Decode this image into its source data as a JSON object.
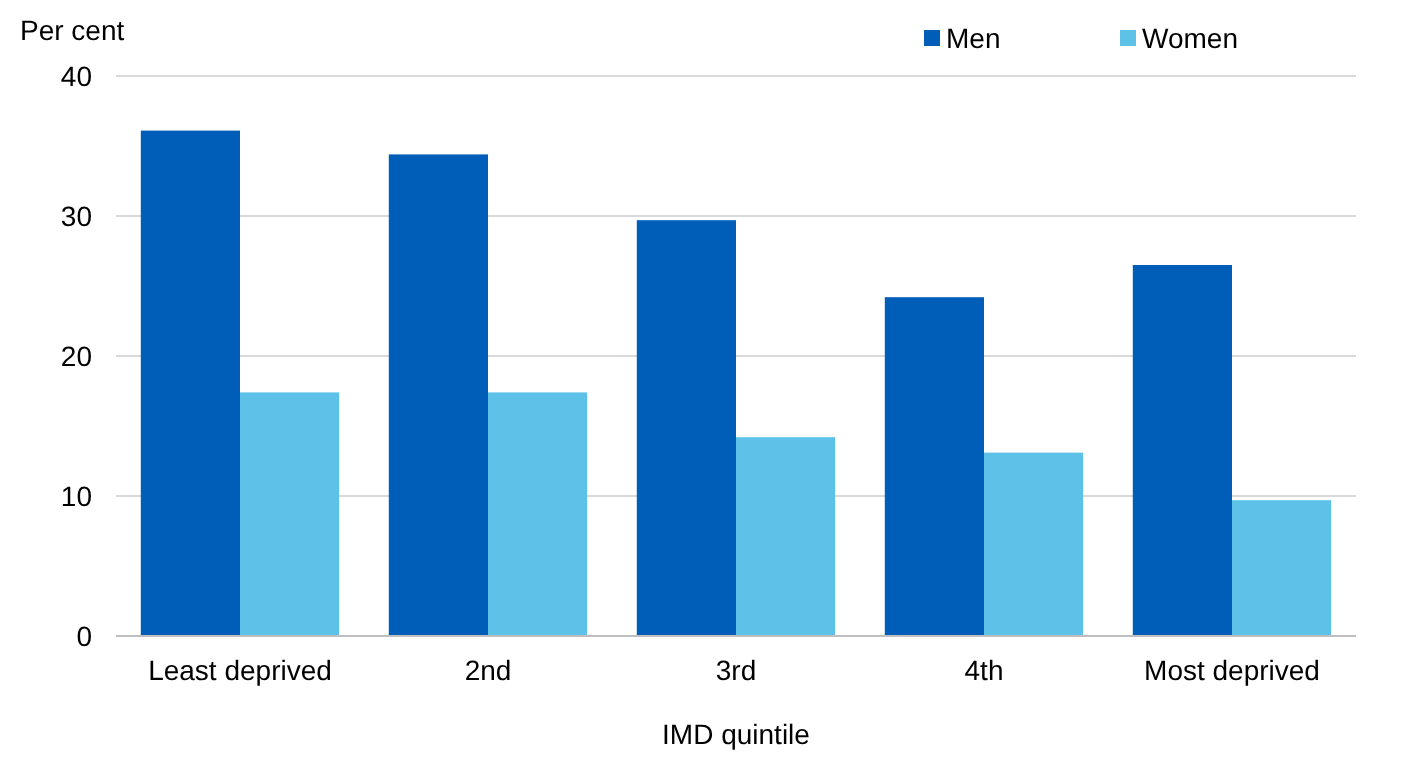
{
  "chart_data": {
    "type": "bar",
    "xlabel": "IMD quintile",
    "ylabel": "Per cent",
    "categories": [
      "Least deprived",
      "2nd",
      "3rd",
      "4th",
      "Most deprived"
    ],
    "series": [
      {
        "name": "Men",
        "color": "#005eb8",
        "values": [
          36.1,
          34.4,
          29.7,
          24.2,
          26.5
        ]
      },
      {
        "name": "Women",
        "color": "#5dc1e8",
        "values": [
          17.4,
          17.4,
          14.2,
          13.1,
          9.7
        ]
      }
    ],
    "ylim": [
      0,
      40
    ],
    "yticks": [
      0,
      10,
      20,
      30,
      40
    ],
    "grid": "y",
    "legend": "top right"
  }
}
